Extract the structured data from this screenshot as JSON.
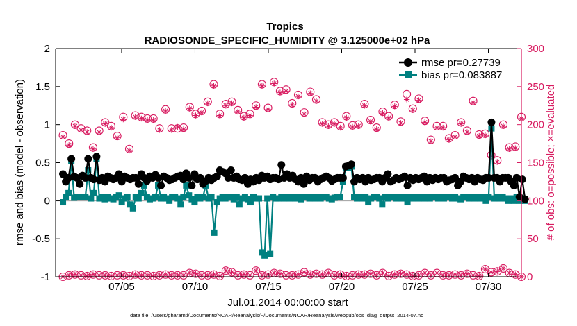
{
  "chart_data": {
    "type": "line",
    "title": "Tropics",
    "subtitle": "RADIOSONDE_SPECIFIC_HUMIDITY @ 3.125000e+02 hPa",
    "xlabel": "Jul.01,2014 00:00:00 start",
    "ylabel_left": "rmse and bias (model - observation)",
    "ylabel_right": "# of obs: o=possible; ×=evaluated",
    "footnote": "data file: /Users/gharamti/Documents/NCAR/Reanalysis/~/Documents/NCAR/Reanalysis/webpub/obs_diag_output_2014-07.nc",
    "x_range_days": [
      0.5,
      32.25
    ],
    "x_tick_days": [
      5,
      10,
      15,
      20,
      25,
      30
    ],
    "x_tick_labels": [
      "07/05",
      "07/10",
      "07/15",
      "07/20",
      "07/25",
      "07/30"
    ],
    "ylim_left": [
      -1,
      2
    ],
    "y_ticks_left": [
      -1,
      -0.5,
      0,
      0.5,
      1,
      1.5,
      2
    ],
    "y_tick_labels_left": [
      "-1",
      "-0.5",
      "0",
      "0.5",
      "1",
      "1.5",
      "2"
    ],
    "ylim_right": [
      0,
      300
    ],
    "y_ticks_right": [
      0,
      50,
      100,
      150,
      200,
      250,
      300
    ],
    "y_tick_labels_right": [
      "0",
      "50",
      "100",
      "150",
      "200",
      "250",
      "300"
    ],
    "colors": {
      "rmse": "#000000",
      "bias": "#008080",
      "obs": "#d81b60",
      "zero_line": "#aaaaaa",
      "axis_left": "#000000",
      "axis_right": "#d81b60"
    },
    "series": [
      {
        "name": "rmse",
        "legend": "rmse pr=0.27739",
        "values": [
          0.35,
          0.25,
          0.3,
          0.55,
          0.32,
          0.3,
          0.22,
          0.33,
          0.3,
          0.55,
          0.3,
          0.28,
          0.58,
          0.27,
          0.3,
          0.25,
          0.32,
          0.3,
          0.28,
          0.3,
          0.35,
          0.25,
          0.32,
          0.3,
          0.28,
          0.3,
          0.3,
          0.22,
          0.35,
          0.3,
          0.26,
          0.32,
          0.3,
          0.34,
          0.3,
          0.2,
          0.32,
          0.3,
          0.27,
          0.28,
          0.3,
          0.32,
          0.33,
          0.28,
          0.36,
          0.3,
          0.2,
          0.35,
          0.28,
          0.3,
          0.22,
          0.26,
          0.3,
          0.27,
          0.3,
          0.32,
          0.4,
          0.38,
          0.36,
          0.3,
          0.4,
          0.3,
          0.32,
          0.28,
          0.27,
          0.3,
          0.22,
          0.28,
          0.25,
          0.3,
          0.27,
          0.33,
          0.3,
          0.32,
          0.28,
          0.3,
          0.3,
          0.28,
          0.47,
          0.3,
          0.35,
          0.3,
          0.33,
          0.28,
          0.25,
          0.3,
          0.22,
          0.32,
          0.27,
          0.3,
          0.3,
          0.25,
          0.28,
          0.3,
          0.32,
          0.3,
          0.26,
          0.28,
          0.3,
          0.3,
          0.3,
          0.45,
          0.46,
          0.48,
          0.25,
          0.3,
          0.28,
          0.3,
          0.25,
          0.3,
          0.27,
          0.28,
          0.3,
          0.3,
          0.25,
          0.3,
          0.35,
          0.25,
          0.27,
          0.3,
          0.28,
          0.3,
          0.32,
          0.2,
          0.3,
          0.27,
          0.3,
          0.28,
          0.3,
          0.32,
          0.25,
          0.3,
          0.27,
          0.3,
          0.28,
          0.3,
          0.3,
          0.25,
          0.27,
          0.28,
          0.3,
          0.2,
          0.25,
          0.32,
          0.3,
          0.28,
          0.3,
          0.25,
          0.3,
          0.28,
          0.27,
          0.3,
          0.3,
          1.03,
          0.3,
          0.3,
          0.25,
          0.3,
          0.3,
          0.3,
          0.25,
          0.2,
          0.3,
          0.05,
          0.28,
          0.02
        ]
      },
      {
        "name": "bias",
        "legend": "bias pr=0.083887",
        "values": [
          -0.02,
          0.05,
          0.1,
          0.52,
          0.04,
          0.05,
          0.05,
          0.05,
          0.05,
          0.4,
          0.03,
          0.1,
          0.55,
          0.03,
          0.05,
          0.02,
          0.05,
          0.03,
          0.02,
          0.05,
          0.07,
          -0.02,
          0.03,
          0.05,
          -0.05,
          -0.1,
          0.05,
          0.03,
          0.1,
          0.2,
          0.05,
          0.02,
          0.03,
          0.05,
          0.2,
          0.03,
          0.05,
          0.03,
          0.0,
          0.05,
          0.05,
          0.03,
          -0.05,
          0.05,
          0.2,
          0.07,
          0.02,
          -0.02,
          0.05,
          0.03,
          0.05,
          0.2,
          0.03,
          0.05,
          -0.42,
          -0.02,
          0.03,
          0.05,
          0.03,
          0.05,
          0.05,
          0.02,
          0.05,
          -0.05,
          0.03,
          0.05,
          0.02,
          -0.02,
          0.05,
          0.03,
          0.03,
          -0.68,
          -0.72,
          0.03,
          -0.7,
          0.05,
          0.03,
          0.03,
          0.05,
          0.03,
          0.05,
          0.03,
          0.05,
          0.03,
          0.05,
          0.02,
          0.05,
          0.05,
          0.03,
          0.05,
          0.03,
          0.05,
          0.03,
          0.05,
          0.05,
          0.03,
          0.02,
          0.04,
          0.05,
          0.05,
          0.25,
          0.43,
          0.43,
          0.45,
          0.05,
          0.03,
          0.05,
          0.03,
          0.05,
          -0.02,
          0.03,
          0.05,
          0.05,
          0.03,
          -0.05,
          0.05,
          0.03,
          0.05,
          0.05,
          0.03,
          0.05,
          0.03,
          0.05,
          -0.02,
          0.05,
          0.03,
          0.05,
          0.03,
          0.05,
          0.03,
          0.05,
          0.03,
          0.05,
          0.05,
          0.03,
          0.05,
          0.03,
          0.05,
          0.05,
          0.03,
          0.05,
          0.03,
          0.02,
          0.05,
          0.05,
          0.03,
          0.05,
          0.03,
          0.05,
          0.03,
          0.05,
          0.0,
          0.05,
          0.95,
          0.03,
          0.05,
          0.03,
          0.05,
          0.03,
          0.0,
          0.03,
          0.0,
          0.05,
          0.0,
          0.03,
          0.0
        ]
      },
      {
        "name": "obs_possible_high",
        "values": [
          186,
          175,
          200,
          195,
          192,
          170,
          192,
          203,
          198,
          185,
          210,
          168,
          212,
          210,
          208,
          208,
          195,
          220,
          195,
          195,
          196,
          223,
          214,
          218,
          230,
          253,
          214,
          227,
          230,
          219,
          211,
          214,
          225,
          253,
          222,
          256,
          244,
          246,
          228,
          239,
          216,
          243,
          233,
          203,
          200,
          203,
          198,
          211,
          199,
          200,
          227,
          206,
          196,
          217,
          211,
          226,
          204,
          240,
          221,
          234,
          205,
          180,
          198,
          198,
          182,
          186,
          203,
          192,
          231,
          187,
          188,
          160,
          153,
          200,
          170,
          171,
          210
        ]
      },
      {
        "name": "obs_evaluated_high",
        "values": [
          184,
          173,
          198,
          193,
          190,
          168,
          190,
          201,
          196,
          183,
          207,
          166,
          210,
          208,
          206,
          206,
          193,
          218,
          193,
          197,
          194,
          221,
          212,
          216,
          228,
          251,
          212,
          225,
          228,
          217,
          209,
          212,
          223,
          251,
          220,
          254,
          242,
          244,
          226,
          237,
          214,
          241,
          231,
          201,
          198,
          201,
          196,
          209,
          197,
          198,
          225,
          204,
          194,
          215,
          209,
          224,
          202,
          233,
          219,
          232,
          203,
          178,
          196,
          196,
          180,
          184,
          201,
          190,
          229,
          185,
          186,
          158,
          151,
          198,
          168,
          169,
          208
        ]
      },
      {
        "name": "obs_possible_low",
        "values": [
          0,
          2,
          3,
          2,
          1,
          3,
          2,
          2,
          1,
          2,
          2,
          1,
          3,
          2,
          2,
          1,
          2,
          3,
          2,
          2,
          2,
          5,
          4,
          2,
          2,
          3,
          1,
          8,
          6,
          2,
          3,
          2,
          8,
          2,
          3,
          5,
          4,
          2,
          2,
          3,
          6,
          3,
          4,
          3,
          5,
          2,
          3,
          1,
          2,
          3,
          3,
          4,
          2,
          5,
          1,
          3,
          4,
          3,
          1,
          2,
          5,
          2,
          5,
          2,
          2,
          3,
          2,
          4,
          2,
          1,
          10,
          6,
          7,
          11,
          5,
          3,
          0
        ]
      },
      {
        "name": "obs_evaluated_low",
        "values": [
          0,
          2,
          3,
          2,
          1,
          3,
          2,
          2,
          1,
          2,
          2,
          1,
          3,
          2,
          2,
          1,
          2,
          3,
          2,
          2,
          2,
          5,
          4,
          2,
          2,
          3,
          1,
          8,
          6,
          2,
          3,
          2,
          8,
          2,
          3,
          5,
          4,
          2,
          2,
          3,
          6,
          3,
          4,
          3,
          5,
          2,
          3,
          1,
          2,
          3,
          3,
          4,
          2,
          5,
          1,
          3,
          4,
          3,
          1,
          2,
          5,
          2,
          5,
          2,
          2,
          3,
          2,
          4,
          2,
          1,
          10,
          6,
          7,
          11,
          5,
          3,
          0
        ]
      }
    ]
  }
}
